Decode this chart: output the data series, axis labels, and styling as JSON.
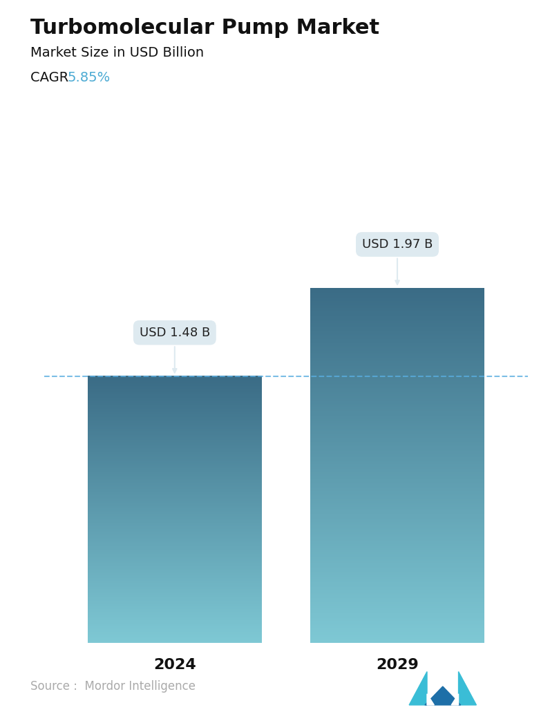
{
  "title": "Turbomolecular Pump Market",
  "subtitle": "Market Size in USD Billion",
  "cagr_label": "CAGR ",
  "cagr_value": "5.85%",
  "cagr_color": "#4BAAD3",
  "categories": [
    "2024",
    "2029"
  ],
  "values": [
    1.48,
    1.97
  ],
  "bar_labels": [
    "USD 1.48 B",
    "USD 1.97 B"
  ],
  "bar_top_color": "#3a6b85",
  "bar_bottom_color": "#7ec8d4",
  "dashed_line_y": 1.48,
  "dashed_line_color": "#5AADE0",
  "source_text": "Source :  Mordor Intelligence",
  "source_color": "#aaaaaa",
  "background_color": "#ffffff",
  "ylim": [
    0,
    2.3
  ],
  "title_fontsize": 22,
  "subtitle_fontsize": 14,
  "cagr_fontsize": 14,
  "bar_label_fontsize": 13,
  "xtick_fontsize": 16,
  "source_fontsize": 12,
  "bar_positions": [
    0.27,
    0.73
  ],
  "bar_width": 0.36
}
